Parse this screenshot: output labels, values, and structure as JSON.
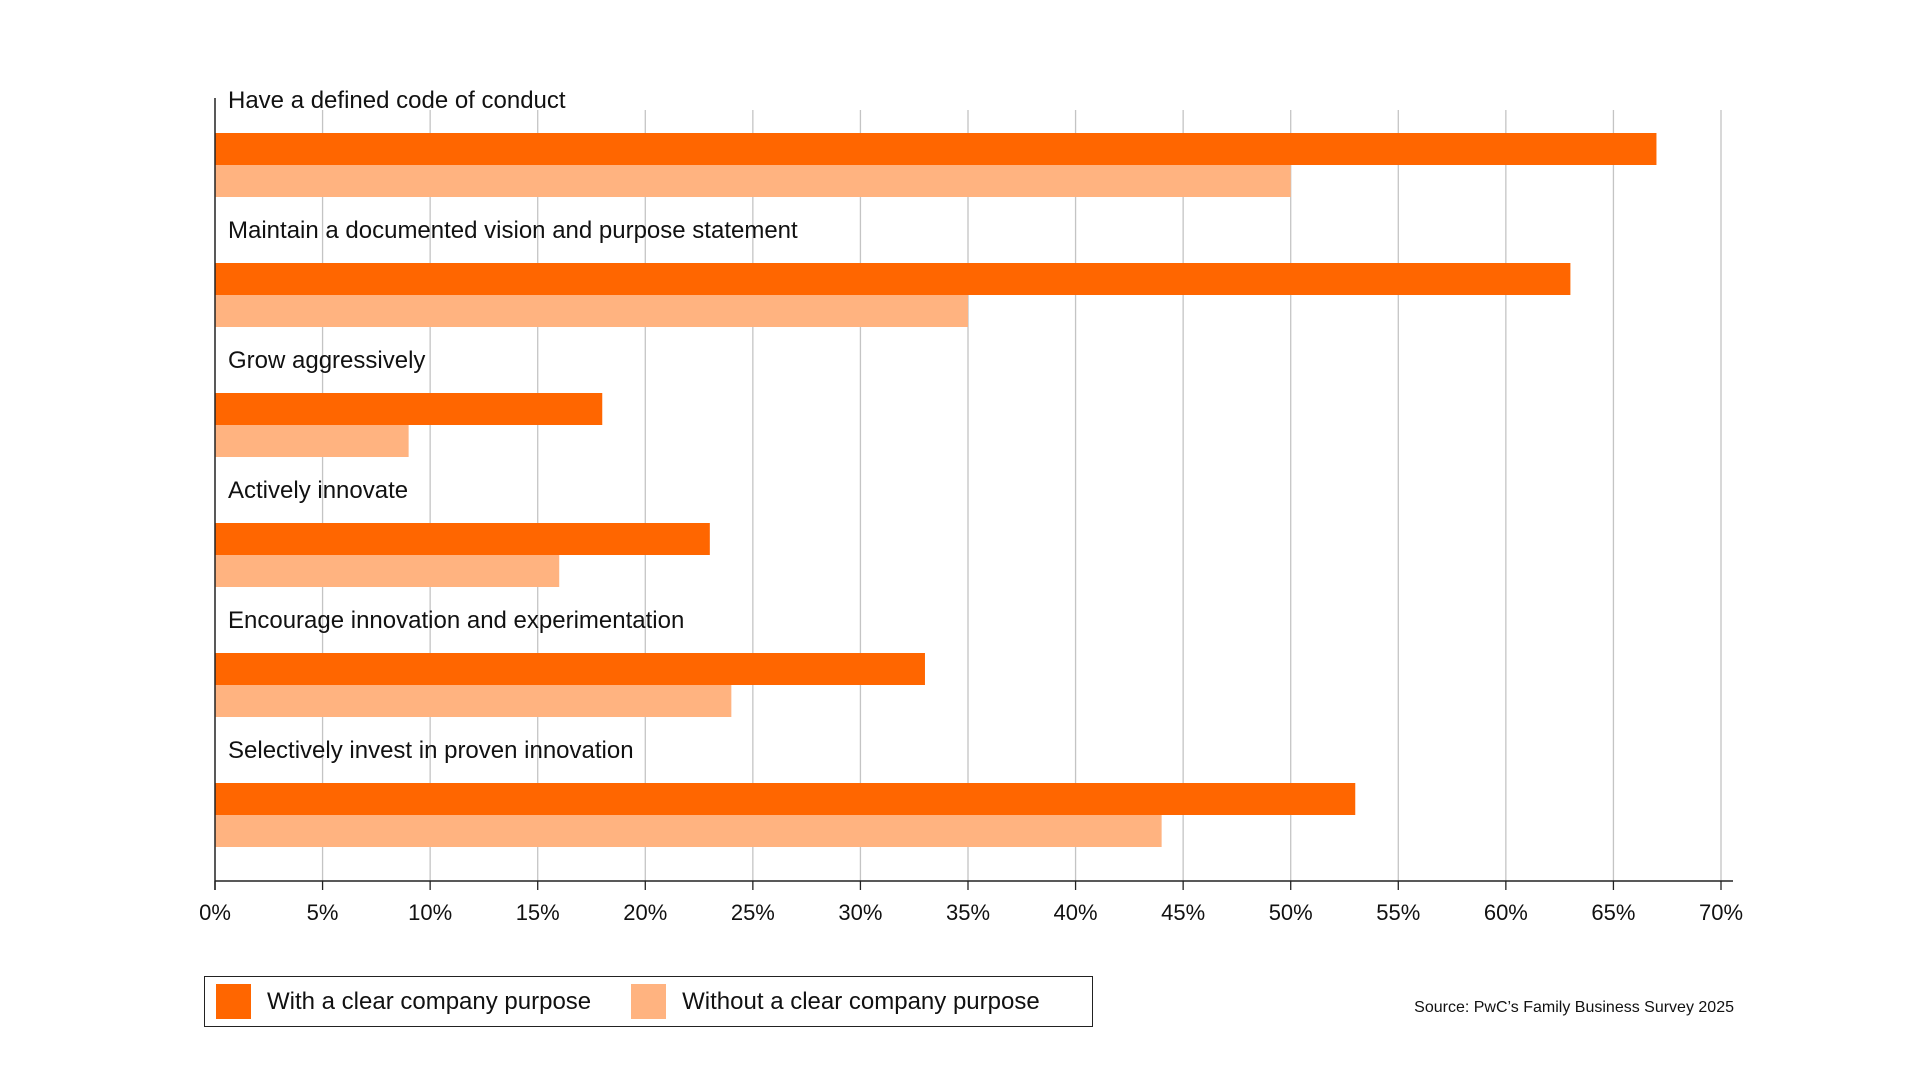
{
  "chart_data": {
    "type": "bar",
    "orientation": "horizontal",
    "categories": [
      "Have a defined code of conduct",
      "Maintain a documented vision and purpose statement",
      "Grow aggressively",
      "Actively innovate",
      "Encourage innovation and experimentation",
      "Selectively invest in proven innovation"
    ],
    "series": [
      {
        "name": "With a clear company purpose",
        "color": "#FF6600",
        "values": [
          67,
          63,
          18,
          23,
          33,
          53
        ]
      },
      {
        "name": "Without a clear company purpose",
        "color": "#FFB380",
        "values": [
          50,
          35,
          9,
          16,
          24,
          44
        ]
      }
    ],
    "xlim": [
      0,
      70
    ],
    "xticks": [
      "0%",
      "5%",
      "10%",
      "15%",
      "20%",
      "25%",
      "30%",
      "35%",
      "40%",
      "45%",
      "50%",
      "55%",
      "60%",
      "65%",
      "70%"
    ],
    "grid": true,
    "legend_position": "bottom-left"
  },
  "source": "Source: PwC’s Family Business Survey 2025"
}
